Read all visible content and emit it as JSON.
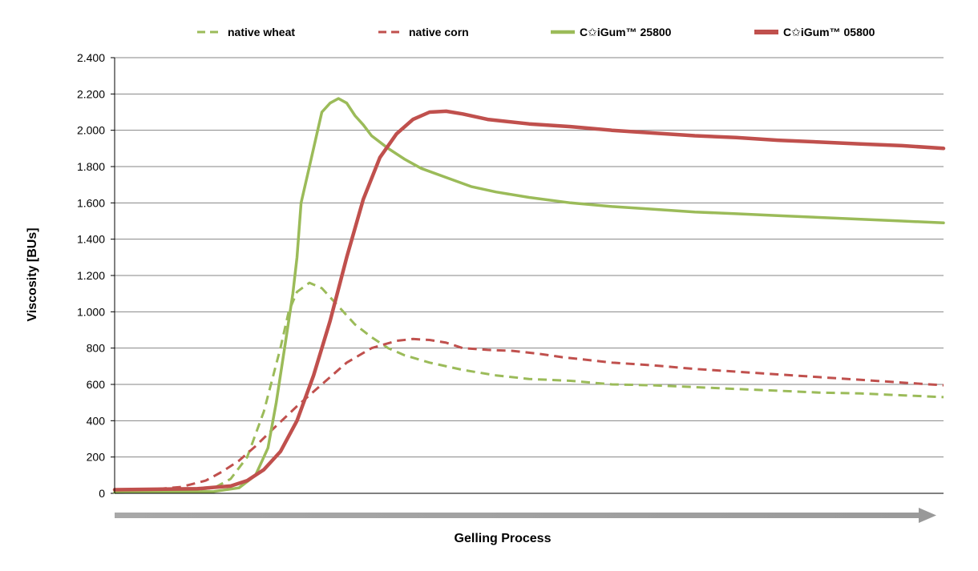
{
  "chart_data": {
    "type": "line",
    "xlabel": "Gelling Process",
    "ylabel": "Viscosity [BUs]",
    "ylim": [
      0,
      2400
    ],
    "yticks": [
      {
        "value": 0,
        "label": "0"
      },
      {
        "value": 200,
        "label": "200"
      },
      {
        "value": 400,
        "label": "400"
      },
      {
        "value": 600,
        "label": "600"
      },
      {
        "value": 800,
        "label": "800"
      },
      {
        "value": 1000,
        "label": "1.000"
      },
      {
        "value": 1200,
        "label": "1.200"
      },
      {
        "value": 1400,
        "label": "1.400"
      },
      {
        "value": 1600,
        "label": "1.600"
      },
      {
        "value": 1800,
        "label": "1.800"
      },
      {
        "value": 2000,
        "label": "2.000"
      },
      {
        "value": 2200,
        "label": "2.200"
      },
      {
        "value": 2400,
        "label": "2.400"
      }
    ],
    "xlim": [
      0,
      100
    ],
    "grid": true,
    "legend_position": "top",
    "series": [
      {
        "name": "native wheat",
        "color": "#9bbb59",
        "style": "dashed",
        "points": [
          [
            0,
            5
          ],
          [
            8,
            10
          ],
          [
            12,
            30
          ],
          [
            14,
            80
          ],
          [
            16,
            200
          ],
          [
            18,
            450
          ],
          [
            20,
            800
          ],
          [
            21,
            1000
          ],
          [
            22,
            1110
          ],
          [
            23.5,
            1160
          ],
          [
            25,
            1130
          ],
          [
            27,
            1030
          ],
          [
            29,
            930
          ],
          [
            31,
            860
          ],
          [
            33,
            800
          ],
          [
            35,
            760
          ],
          [
            38,
            720
          ],
          [
            42,
            680
          ],
          [
            46,
            650
          ],
          [
            50,
            630
          ],
          [
            55,
            620
          ],
          [
            60,
            600
          ],
          [
            65,
            595
          ],
          [
            70,
            585
          ],
          [
            75,
            575
          ],
          [
            80,
            565
          ],
          [
            85,
            555
          ],
          [
            90,
            550
          ],
          [
            95,
            540
          ],
          [
            100,
            530
          ]
        ]
      },
      {
        "name": "native corn",
        "color": "#c0504d",
        "style": "dashed",
        "points": [
          [
            0,
            15
          ],
          [
            4,
            20
          ],
          [
            8,
            35
          ],
          [
            11,
            70
          ],
          [
            13,
            120
          ],
          [
            15,
            180
          ],
          [
            17,
            260
          ],
          [
            19,
            350
          ],
          [
            22,
            480
          ],
          [
            25,
            600
          ],
          [
            28,
            720
          ],
          [
            31,
            800
          ],
          [
            34,
            840
          ],
          [
            36,
            850
          ],
          [
            38,
            845
          ],
          [
            40,
            830
          ],
          [
            42,
            800
          ],
          [
            45,
            790
          ],
          [
            48,
            785
          ],
          [
            51,
            770
          ],
          [
            54,
            750
          ],
          [
            57,
            735
          ],
          [
            60,
            720
          ],
          [
            65,
            705
          ],
          [
            70,
            685
          ],
          [
            75,
            670
          ],
          [
            80,
            655
          ],
          [
            85,
            640
          ],
          [
            90,
            625
          ],
          [
            95,
            610
          ],
          [
            100,
            595
          ]
        ]
      },
      {
        "name": "C✩iGum™ 25800",
        "color": "#9bbb59",
        "style": "solid",
        "points": [
          [
            0,
            5
          ],
          [
            12,
            10
          ],
          [
            15,
            30
          ],
          [
            17,
            100
          ],
          [
            18.5,
            250
          ],
          [
            19.5,
            500
          ],
          [
            20.5,
            800
          ],
          [
            21.5,
            1100
          ],
          [
            22,
            1300
          ],
          [
            22.5,
            1600
          ],
          [
            23.5,
            1800
          ],
          [
            24.5,
            2000
          ],
          [
            25,
            2100
          ],
          [
            26,
            2150
          ],
          [
            27,
            2175
          ],
          [
            28,
            2150
          ],
          [
            29,
            2080
          ],
          [
            30,
            2030
          ],
          [
            31,
            1970
          ],
          [
            33,
            1900
          ],
          [
            35,
            1840
          ],
          [
            37,
            1790
          ],
          [
            40,
            1740
          ],
          [
            43,
            1690
          ],
          [
            46,
            1660
          ],
          [
            50,
            1630
          ],
          [
            55,
            1600
          ],
          [
            60,
            1580
          ],
          [
            65,
            1565
          ],
          [
            70,
            1550
          ],
          [
            75,
            1540
          ],
          [
            80,
            1530
          ],
          [
            85,
            1520
          ],
          [
            90,
            1510
          ],
          [
            95,
            1500
          ],
          [
            100,
            1490
          ]
        ]
      },
      {
        "name": "C✩iGum™ 05800",
        "color": "#c0504d",
        "style": "solid",
        "points": [
          [
            0,
            20
          ],
          [
            10,
            25
          ],
          [
            14,
            40
          ],
          [
            16,
            70
          ],
          [
            18,
            130
          ],
          [
            20,
            230
          ],
          [
            22,
            400
          ],
          [
            24,
            650
          ],
          [
            26,
            950
          ],
          [
            28,
            1300
          ],
          [
            30,
            1620
          ],
          [
            32,
            1850
          ],
          [
            34,
            1980
          ],
          [
            36,
            2060
          ],
          [
            38,
            2100
          ],
          [
            40,
            2105
          ],
          [
            42,
            2090
          ],
          [
            45,
            2060
          ],
          [
            50,
            2035
          ],
          [
            55,
            2020
          ],
          [
            60,
            2000
          ],
          [
            65,
            1985
          ],
          [
            70,
            1970
          ],
          [
            75,
            1960
          ],
          [
            80,
            1945
          ],
          [
            85,
            1935
          ],
          [
            90,
            1925
          ],
          [
            95,
            1915
          ],
          [
            100,
            1900
          ]
        ]
      }
    ]
  }
}
